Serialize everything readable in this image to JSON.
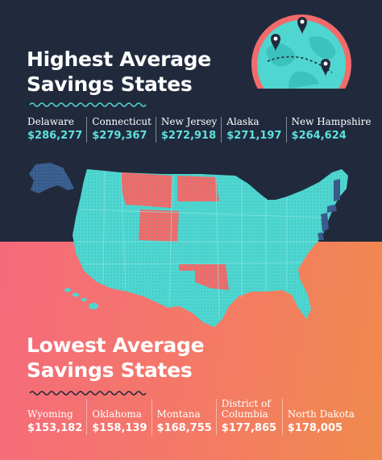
{
  "highest": {
    "title_line1": "Highest Average",
    "title_line2": "Savings States",
    "states": [
      {
        "name": "Delaware",
        "value": "$286,277"
      },
      {
        "name": "Connecticut",
        "value": "$279,367"
      },
      {
        "name": "New Jersey",
        "value": "$272,918"
      },
      {
        "name": "Alaska",
        "value": "$271,197"
      },
      {
        "name": "New Hampshire",
        "value": "$264,624"
      }
    ]
  },
  "lowest": {
    "title_line1": "Lowest Average",
    "title_line2": "Savings States",
    "states": [
      {
        "name": "Wyoming",
        "value": "$153,182"
      },
      {
        "name": "Oklahoma",
        "value": "$158,139"
      },
      {
        "name": "Montana",
        "value": "$168,755"
      },
      {
        "name": "District of Columbia",
        "value": "$177,865"
      },
      {
        "name": "North Dakota",
        "value": "$178,005"
      }
    ]
  },
  "colors": {
    "dark_background": "#212a3d",
    "gradient_start": "#f56a7c",
    "gradient_end": "#f08a4c",
    "map_base": "#4fd6d0",
    "highest_states": "#3a5a8c",
    "lowest_states": "#f26b6b",
    "accent_value": "#5ee0dc"
  },
  "icons": [
    "globe-icon",
    "map-pin-icon",
    "us-map"
  ]
}
